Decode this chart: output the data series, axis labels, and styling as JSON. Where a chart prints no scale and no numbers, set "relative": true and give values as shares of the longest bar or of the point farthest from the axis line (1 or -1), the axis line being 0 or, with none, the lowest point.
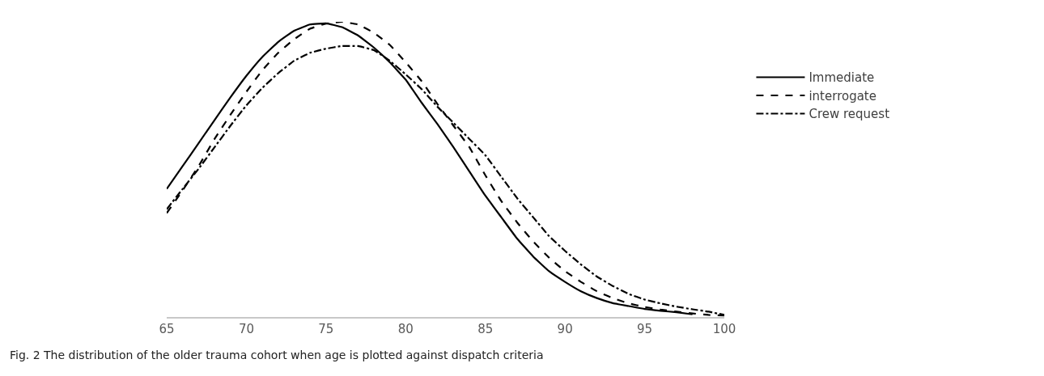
{
  "chart_data": {
    "type": "line",
    "relative": true,
    "x": [
      65,
      66,
      67,
      68,
      69,
      70,
      71,
      72,
      73,
      74,
      75,
      76,
      77,
      78,
      79,
      80,
      81,
      82,
      83,
      84,
      85,
      86,
      87,
      88,
      89,
      90,
      91,
      92,
      93,
      94,
      95,
      96,
      97,
      98,
      99,
      100
    ],
    "xlim": [
      65,
      100
    ],
    "xticks": [
      65,
      70,
      75,
      80,
      85,
      90,
      95,
      100
    ],
    "series": [
      {
        "name": "Immediate",
        "color": "#000000",
        "line_style": "solid",
        "values": [
          0.434,
          0.511,
          0.589,
          0.667,
          0.744,
          0.817,
          0.881,
          0.932,
          0.97,
          0.991,
          0.995,
          0.982,
          0.954,
          0.913,
          0.863,
          0.804,
          0.726,
          0.653,
          0.575,
          0.493,
          0.411,
          0.338,
          0.265,
          0.205,
          0.155,
          0.119,
          0.087,
          0.064,
          0.047,
          0.037,
          0.027,
          0.021,
          0.016,
          0.009,
          null,
          null
        ]
      },
      {
        "name": "interrogate",
        "color": "#000000",
        "line_style": "dashed",
        "values": [
          0.352,
          0.429,
          0.511,
          0.603,
          0.685,
          0.763,
          0.836,
          0.895,
          0.941,
          0.977,
          0.994,
          1.0,
          0.991,
          0.963,
          0.922,
          0.863,
          0.799,
          0.721,
          0.648,
          0.575,
          0.48,
          0.393,
          0.32,
          0.256,
          0.201,
          0.155,
          0.119,
          0.087,
          0.064,
          0.046,
          0.034,
          0.025,
          0.018,
          0.012,
          0.007,
          0.005
        ]
      },
      {
        "name": "Crew request",
        "color": "#000000",
        "line_style": "dashdot",
        "values": [
          0.365,
          0.434,
          0.502,
          0.575,
          0.648,
          0.717,
          0.776,
          0.826,
          0.868,
          0.895,
          0.909,
          0.918,
          0.918,
          0.904,
          0.868,
          0.822,
          0.772,
          0.712,
          0.658,
          0.603,
          0.548,
          0.475,
          0.402,
          0.338,
          0.274,
          0.224,
          0.178,
          0.137,
          0.105,
          0.078,
          0.059,
          0.046,
          0.035,
          0.026,
          0.018,
          0.007
        ]
      }
    ],
    "legend": "right",
    "annotations": [
      "Fig. 2 The distribution of the older trauma cohort when age is plotted against dispatch criteria"
    ]
  }
}
